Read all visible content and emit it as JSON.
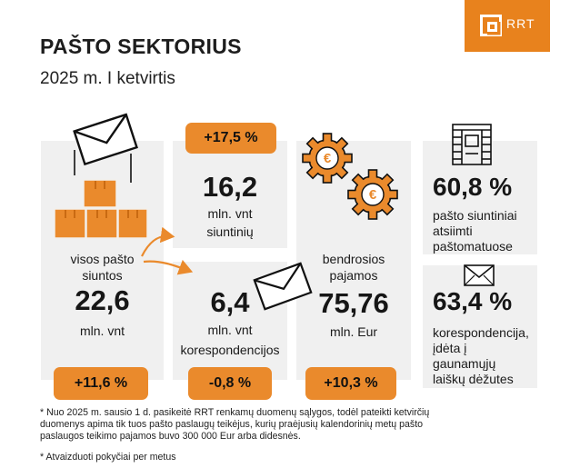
{
  "header": {
    "title": "PAŠTO SEKTORIUS",
    "subtitle": "2025 m. I ketvirtis",
    "logo_text": "RRT"
  },
  "brand_color": "#ea8a2c",
  "card_color": "#f0f0f0",
  "total": {
    "label_line1": "visos pašto",
    "label_line2": "siuntos",
    "value": "22,6",
    "unit": "mln. vnt",
    "change": "+11,6 %"
  },
  "parcels": {
    "change": "+17,5 %",
    "value": "16,2",
    "unit_line1": "mln. vnt",
    "unit_line2": "siuntinių"
  },
  "letters": {
    "value": "6,4",
    "unit_line1": "mln. vnt",
    "unit_line2": "korespondencijos",
    "change": "-0,8 %"
  },
  "revenue": {
    "label_line1": "bendrosios",
    "label_line2": "pajamos",
    "value": "75,76",
    "unit": "mln. Eur",
    "change": "+10,3 %"
  },
  "parcel_lockers": {
    "value": "60,8 %",
    "label_line1": "pašto siuntiniai",
    "label_line2": "atsiimti",
    "label_line3": "paštomatuose"
  },
  "mailboxes": {
    "value": "63,4 %",
    "label_line1": "korespondencija,",
    "label_line2": "įdėta į",
    "label_line3": "gaunamųjų",
    "label_line4": "laiškų dėžutes"
  },
  "footnotes": {
    "note1_line1": "* Nuo 2025 m. sausio 1 d. pasikeitė RRT renkamų duomenų sąlygos, todėl pateikti ketvirčių",
    "note1_line2": "duomenys apima tik tuos pašto paslaugų teikėjus, kurių praėjusių kalendorinių metų pašto",
    "note1_line3": "paslaugos teikimo pajamos buvo 300 000 Eur arba didesnės.",
    "note2": "* Atvaizduoti pokyčiai per metus"
  },
  "icons": [
    "envelope-icon",
    "boxes-icon",
    "euro-gear-icon",
    "parcel-locker-icon",
    "mailbox-envelope-icon",
    "arrow-icon"
  ]
}
